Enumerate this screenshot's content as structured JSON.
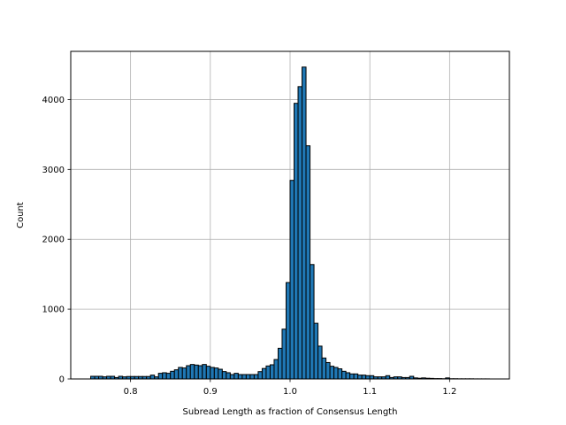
{
  "chart_data": {
    "type": "bar",
    "subtype": "histogram",
    "title": "",
    "xlabel": "Subread Length as fraction of Consensus Length",
    "ylabel": "Count",
    "xlim": [
      0.725,
      1.275
    ],
    "ylim": [
      0,
      4690
    ],
    "grid": true,
    "legend": null,
    "bar_color": "#1f77b4",
    "edge_color": "#000000",
    "bin_start": 0.75,
    "bin_width": 0.005,
    "bin_count": 100,
    "xticks": [
      0.8,
      0.9,
      1.0,
      1.1,
      1.2
    ],
    "xtick_labels": [
      "0.8",
      "0.9",
      "1.0",
      "1.1",
      "1.2"
    ],
    "yticks": [
      0,
      1000,
      2000,
      3000,
      4000
    ],
    "ytick_labels": [
      "0",
      "1000",
      "2000",
      "3000",
      "4000"
    ],
    "values": [
      38,
      38,
      38,
      30,
      38,
      38,
      20,
      38,
      30,
      35,
      35,
      35,
      35,
      35,
      35,
      55,
      30,
      81,
      89,
      81,
      110,
      131,
      165,
      157,
      190,
      207,
      199,
      190,
      207,
      182,
      165,
      157,
      139,
      106,
      89,
      63,
      81,
      63,
      63,
      63,
      63,
      63,
      105,
      150,
      186,
      203,
      278,
      439,
      713,
      1380,
      2843,
      3946,
      4185,
      4465,
      3338,
      1638,
      797,
      470,
      300,
      235,
      182,
      165,
      145,
      110,
      89,
      72,
      72,
      55,
      55,
      47,
      47,
      30,
      30,
      30,
      47,
      20,
      30,
      30,
      20,
      20,
      38,
      15,
      10,
      15,
      10,
      8,
      5,
      5,
      3,
      15,
      3,
      3,
      2,
      2,
      2,
      2,
      1,
      1,
      1,
      1
    ]
  }
}
